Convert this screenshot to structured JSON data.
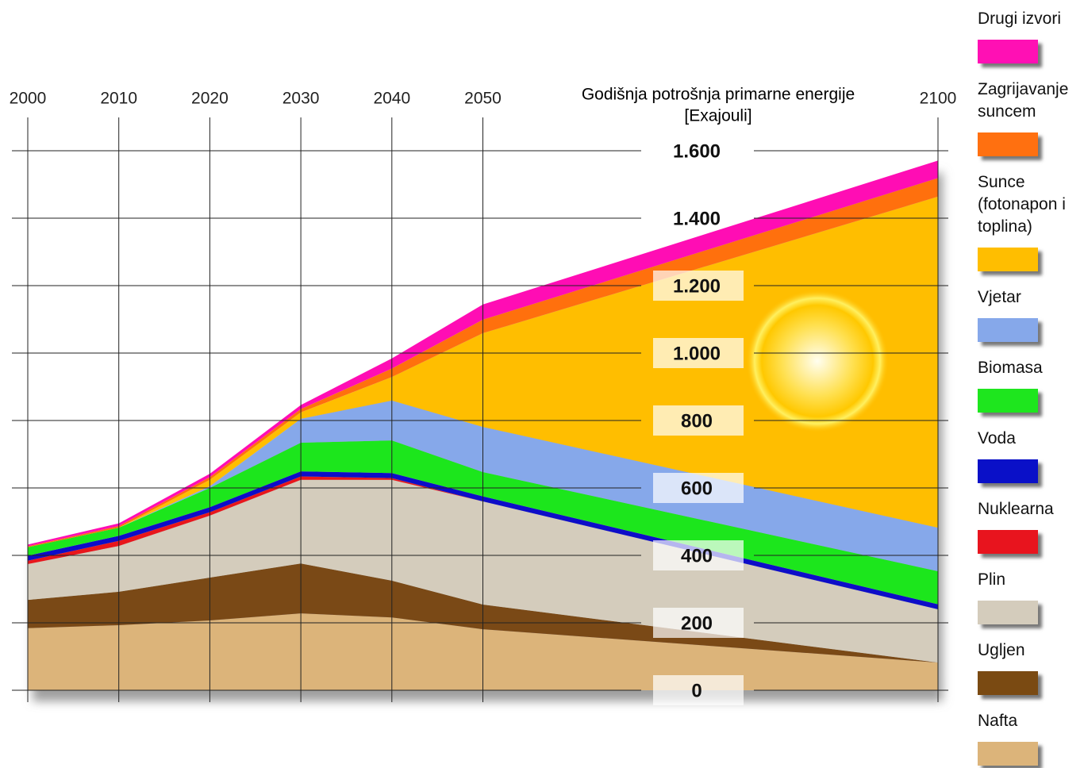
{
  "chart_data": {
    "type": "stacked-area",
    "y_label": [
      "Godišnja potrošnja primarne energije",
      "[Exajouli]"
    ],
    "x": [
      2000,
      2010,
      2020,
      2030,
      2040,
      2050,
      2100
    ],
    "xlim": [
      2000,
      2100
    ],
    "xticks": [
      2000,
      2010,
      2020,
      2030,
      2040,
      2050,
      2100
    ],
    "ylim": [
      0,
      1600
    ],
    "yticks": [
      0,
      200,
      400,
      600,
      800,
      {
        "value": 1000,
        "label": "1.000"
      },
      {
        "value": 1200,
        "label": "1.200"
      },
      {
        "value": 1400,
        "label": "1.400"
      },
      {
        "value": 1600,
        "label": "1.600"
      }
    ],
    "grid": true,
    "series": [
      {
        "name": "Nafta",
        "color": "#dcb47a",
        "values": [
          184,
          193,
          207,
          228,
          216,
          181,
          82
        ]
      },
      {
        "name": "Ugljen",
        "color": "#7a4a12",
        "values": [
          84,
          99,
          127,
          148,
          109,
          73,
          0
        ]
      },
      {
        "name": "Plin",
        "color": "#d4ccbc",
        "values": [
          106,
          136,
          184,
          248,
          299,
          306,
          158
        ]
      },
      {
        "name": "Nuklearna",
        "color": "#e8141e",
        "values": [
          10,
          15,
          10,
          10,
          5,
          0,
          0
        ]
      },
      {
        "name": "Voda",
        "color": "#0a10c8",
        "values": [
          15,
          15,
          15,
          15,
          15,
          15,
          15
        ]
      },
      {
        "name": "Biomasa",
        "color": "#1ee61e",
        "values": [
          25,
          24,
          57,
          85,
          97,
          72,
          98
        ]
      },
      {
        "name": "Vjetar",
        "color": "#86a8ea",
        "values": [
          0,
          0,
          5,
          71,
          118,
          134,
          129
        ]
      },
      {
        "name": "Sunce (fotonapon i toplina)",
        "color": "#ffbe00",
        "values": [
          0,
          0,
          19,
          19,
          70,
          278,
          982
        ]
      },
      {
        "name": "Zagrijavanje suncem",
        "color": "#ff7010",
        "values": [
          3,
          5,
          8,
          10,
          25,
          40,
          55
        ]
      },
      {
        "name": "Drugi izvori",
        "color": "#ff10b4",
        "values": [
          5,
          8,
          10,
          12,
          30,
          45,
          52
        ]
      }
    ]
  }
}
